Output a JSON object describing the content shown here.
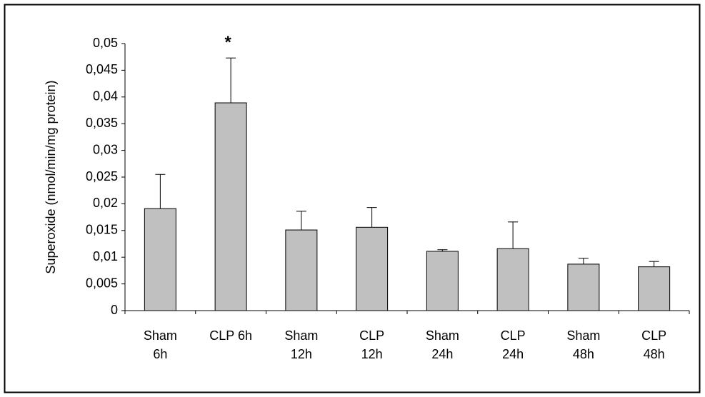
{
  "chart_data": {
    "type": "bar",
    "y_label": "Superoxide (nmol/min/mg protein)",
    "annotation": "*",
    "categories": [
      [
        "Sham",
        "6h"
      ],
      [
        "CLP 6h"
      ],
      [
        "Sham",
        "12h"
      ],
      [
        "CLP",
        "12h"
      ],
      [
        "Sham",
        "24h"
      ],
      [
        "CLP",
        "24h"
      ],
      [
        "Sham",
        "48h"
      ],
      [
        "CLP",
        "48h"
      ]
    ],
    "values": [
      0.0191,
      0.0389,
      0.0151,
      0.0156,
      0.0111,
      0.0116,
      0.0087,
      0.0082
    ],
    "errors": [
      0.0064,
      0.0084,
      0.0035,
      0.0037,
      0.0003,
      0.005,
      0.0011,
      0.001
    ],
    "color": "#c0c0c0",
    "grid": false,
    "ylim": [
      0,
      0.05
    ],
    "yticks": [
      0,
      {
        "value": 0.005,
        "label": "0,005"
      },
      {
        "value": 0.01,
        "label": "0,01"
      },
      {
        "value": 0.015,
        "label": "0,015"
      },
      {
        "value": 0.02,
        "label": "0,02"
      },
      {
        "value": 0.025,
        "label": "0,025"
      },
      {
        "value": 0.03,
        "label": "0,03"
      },
      {
        "value": 0.035,
        "label": "0,035"
      },
      {
        "value": 0.04,
        "label": "0,04"
      },
      {
        "value": 0.045,
        "label": "0,045"
      },
      {
        "value": 0.05,
        "label": "0,05"
      }
    ]
  }
}
